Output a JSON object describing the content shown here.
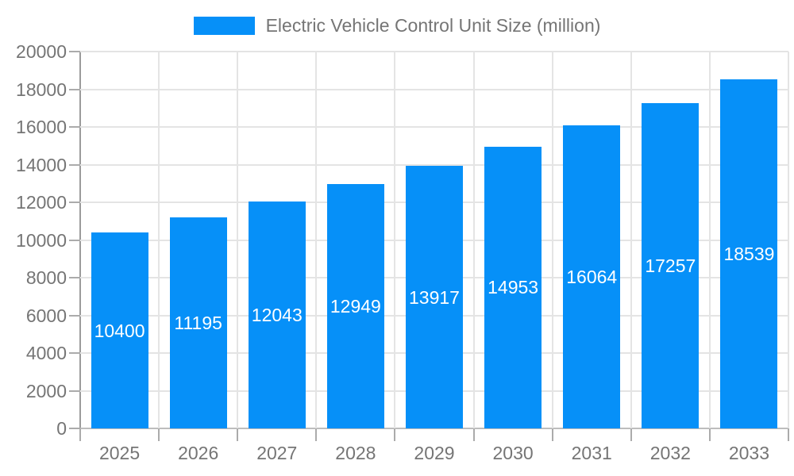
{
  "legend": {
    "label": "Electric Vehicle Control Unit Size (million)"
  },
  "chart_data": {
    "type": "bar",
    "title": "Electric Vehicle Control Unit Size (million)",
    "series_name": "Electric Vehicle Control Unit Size (million)",
    "categories": [
      "2025",
      "2026",
      "2027",
      "2028",
      "2029",
      "2030",
      "2031",
      "2032",
      "2033"
    ],
    "values": [
      10400,
      11195,
      12043,
      12949,
      13917,
      14953,
      16064,
      17257,
      18539
    ],
    "bar_labels": [
      "10400",
      "11195",
      "12043",
      "12949",
      "13917",
      "14953",
      "16064",
      "17257",
      "18539"
    ],
    "xlabel": "",
    "ylabel": "",
    "ylim": [
      0,
      20000
    ],
    "yticks": [
      0,
      2000,
      4000,
      6000,
      8000,
      10000,
      12000,
      14000,
      16000,
      18000,
      20000
    ],
    "grid": true,
    "legend_position": "top"
  },
  "colors": {
    "bar": "#0690f8",
    "grid": "#e4e4e4",
    "axis_y": "#9b9b9b",
    "axis_x": "#bdbdbd",
    "tick": "#ababab",
    "text": "#757575",
    "bar_label": "#ffffff"
  }
}
